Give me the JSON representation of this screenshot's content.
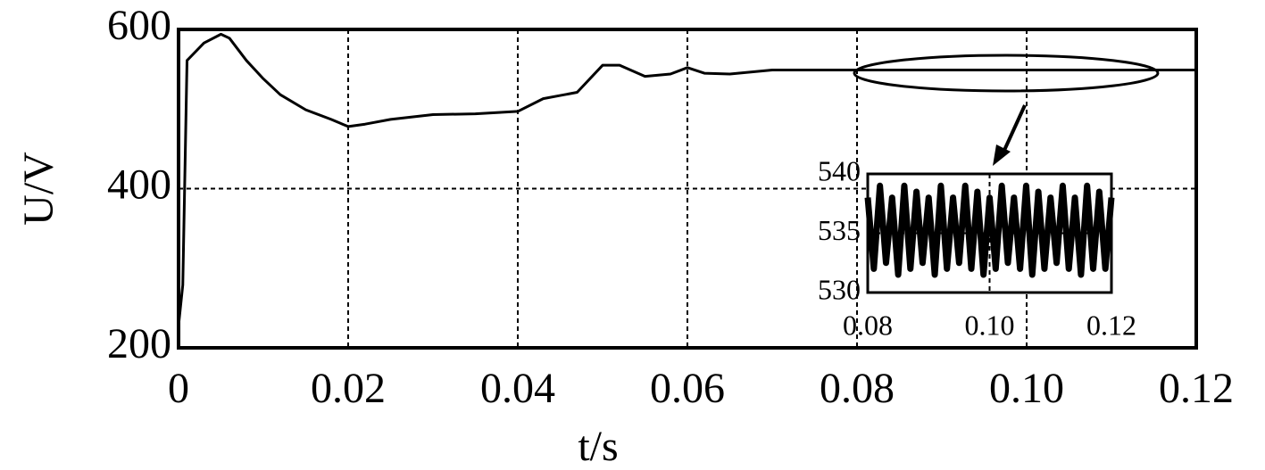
{
  "chart_data": [
    {
      "type": "line",
      "xlabel": "t/s",
      "ylabel": "U/V",
      "color": "#000000",
      "grid": true,
      "xlim": [
        0,
        0.12
      ],
      "ylim": [
        200,
        600
      ],
      "xticks": [
        0,
        0.02,
        0.04,
        0.06,
        0.08,
        {
          "value": 0.1,
          "label": "0.10"
        },
        0.12
      ],
      "yticks": [
        200,
        400,
        600
      ],
      "x": [
        0,
        0.0005,
        0.001,
        0.002,
        0.003,
        0.005,
        0.006,
        0.008,
        0.01,
        0.012,
        0.015,
        0.018,
        0.02,
        0.022,
        0.025,
        0.03,
        0.035,
        0.04,
        0.043,
        0.045,
        0.047,
        0.05,
        0.052,
        0.055,
        0.058,
        0.06,
        0.062,
        0.065,
        0.07,
        0.08,
        0.09,
        0.1,
        0.11,
        0.12
      ],
      "values": [
        228,
        279,
        561,
        572,
        583,
        594,
        589,
        561,
        538,
        518,
        499,
        487,
        478,
        481,
        487,
        493,
        494,
        497,
        513,
        517,
        521,
        555,
        555,
        541,
        544,
        552,
        545,
        544,
        549,
        549,
        549,
        549,
        549,
        549
      ]
    },
    {
      "type": "line",
      "color": "#000000",
      "grid": true,
      "xlim": [
        0.08,
        0.12
      ],
      "ylim": [
        530,
        540
      ],
      "xticks": [
        {
          "value": 0.08,
          "label": "0.08"
        },
        {
          "value": 0.1,
          "label": "0.10"
        },
        {
          "value": 0.12,
          "label": "0.12"
        }
      ],
      "yticks": [
        530,
        535,
        540
      ],
      "x": [
        0.08,
        0.081,
        0.082,
        0.083,
        0.084,
        0.085,
        0.086,
        0.087,
        0.088,
        0.089,
        0.09,
        0.091,
        0.092,
        0.093,
        0.094,
        0.095,
        0.096,
        0.097,
        0.098,
        0.099,
        0.1,
        0.101,
        0.102,
        0.103,
        0.104,
        0.105,
        0.106,
        0.107,
        0.108,
        0.109,
        0.11,
        0.111,
        0.112,
        0.113,
        0.114,
        0.115,
        0.116,
        0.117,
        0.118,
        0.119,
        0.12
      ],
      "values": [
        538,
        532,
        539,
        532.5,
        538,
        531.5,
        539,
        532,
        538.5,
        532.5,
        538,
        531.5,
        539,
        532,
        538,
        532.5,
        539,
        532,
        538.5,
        531.5,
        538,
        532,
        539,
        532.5,
        538,
        532,
        539,
        531.5,
        538.5,
        532,
        538,
        532.5,
        539,
        532,
        538,
        531.5,
        539,
        532,
        538.5,
        532,
        538
      ]
    }
  ]
}
